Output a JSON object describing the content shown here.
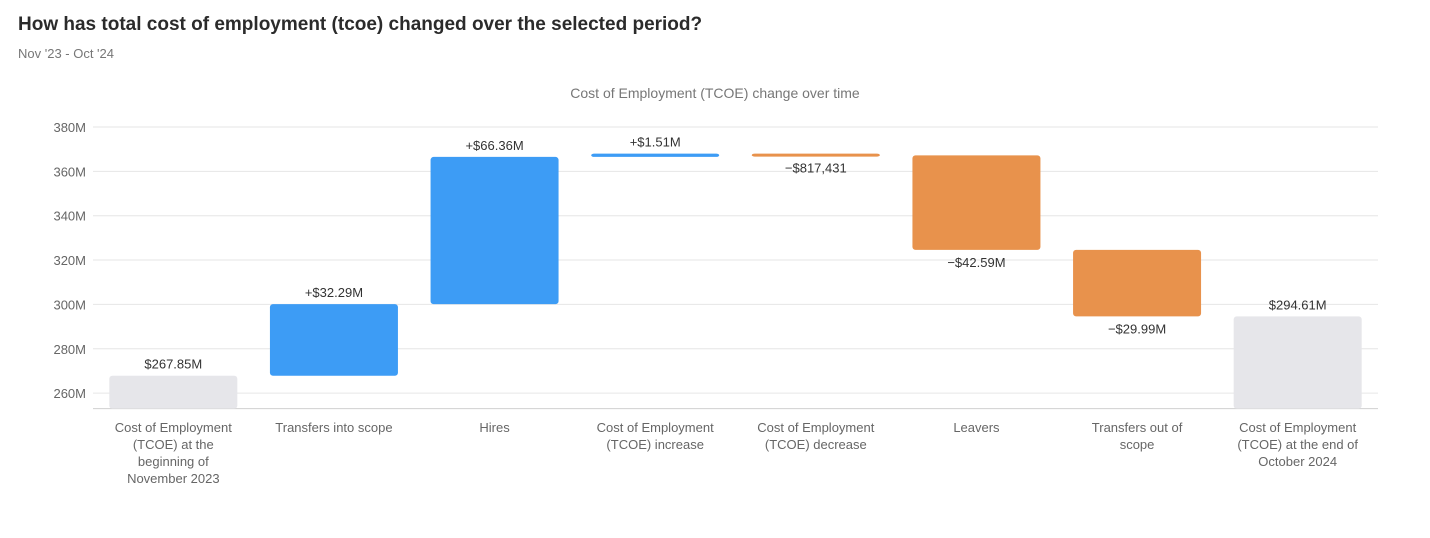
{
  "header": {
    "title": "How has total cost of employment (tcoe) changed over the selected period?",
    "subtitle": "Nov '23 - Oct '24"
  },
  "colors": {
    "increase": "#3d9cf5",
    "decrease": "#e8924c",
    "total": "#e6e6ea"
  },
  "chart_data": {
    "type": "bar",
    "subtype": "waterfall",
    "title": "Cost of Employment (TCOE) change over time",
    "xlabel": "",
    "ylabel": "",
    "ylim": [
      253,
      380
    ],
    "yticks": [
      260,
      280,
      300,
      320,
      340,
      360,
      380
    ],
    "ytick_labels": [
      "260M",
      "280M",
      "300M",
      "320M",
      "340M",
      "360M",
      "380M"
    ],
    "grid": true,
    "legend": "none",
    "categories": [
      [
        "Cost of Employment",
        "(TCOE) at the",
        "beginning of",
        "November 2023"
      ],
      [
        "Transfers into scope"
      ],
      [
        "Hires"
      ],
      [
        "Cost of Employment",
        "(TCOE) increase"
      ],
      [
        "Cost of Employment",
        "(TCOE) decrease"
      ],
      [
        "Leavers"
      ],
      [
        "Transfers out of",
        "scope"
      ],
      [
        "Cost of Employment",
        "(TCOE) at the end of",
        "October 2024"
      ]
    ],
    "bars": [
      {
        "kind": "total",
        "start": 0,
        "end": 267.85,
        "label": "$267.85M"
      },
      {
        "kind": "increase",
        "start": 267.85,
        "end": 300.14,
        "label": "+$32.29M"
      },
      {
        "kind": "increase",
        "start": 300.14,
        "end": 366.5,
        "label": "+$66.36M"
      },
      {
        "kind": "increase",
        "start": 366.5,
        "end": 368.01,
        "label": "+$1.51M"
      },
      {
        "kind": "decrease",
        "start": 368.01,
        "end": 367.19,
        "label": "−$817,431"
      },
      {
        "kind": "decrease",
        "start": 367.19,
        "end": 324.6,
        "label": "−$42.59M"
      },
      {
        "kind": "decrease",
        "start": 324.6,
        "end": 294.61,
        "label": "−$29.99M"
      },
      {
        "kind": "total",
        "start": 0,
        "end": 294.61,
        "label": "$294.61M"
      }
    ]
  }
}
